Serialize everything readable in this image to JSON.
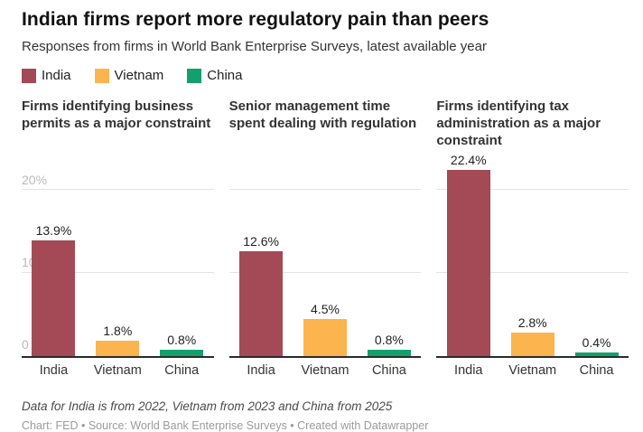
{
  "title": "Indian firms report more regulatory pain than peers",
  "subtitle": "Responses from firms in World Bank Enterprise Surveys, latest available year",
  "legend": {
    "items": [
      {
        "label": "India",
        "color": "#a34a56"
      },
      {
        "label": "Vietnam",
        "color": "#fcb44f"
      },
      {
        "label": "China",
        "color": "#12a16d"
      }
    ]
  },
  "axis": {
    "tick_20": "20%",
    "tick_10": "10",
    "tick_0": "0"
  },
  "chart_data": [
    {
      "type": "bar",
      "title": "Firms identifying business permits as a major constraint",
      "categories": [
        "India",
        "Vietnam",
        "China"
      ],
      "values": [
        13.9,
        1.8,
        0.8
      ],
      "value_labels": [
        "13.9%",
        "1.8%",
        "0.8%"
      ],
      "ylabel": "",
      "xlabel": "",
      "ylim": [
        0,
        20
      ],
      "yticks": [
        0,
        10,
        20
      ],
      "unit": "%",
      "grid": true,
      "legend_position": "top"
    },
    {
      "type": "bar",
      "title": "Senior management time spent dealing with regulation",
      "categories": [
        "India",
        "Vietnam",
        "China"
      ],
      "values": [
        12.6,
        4.5,
        0.8
      ],
      "value_labels": [
        "12.6%",
        "4.5%",
        "0.8%"
      ],
      "ylabel": "",
      "xlabel": "",
      "ylim": [
        0,
        20
      ],
      "yticks": [
        0,
        10,
        20
      ],
      "unit": "%",
      "grid": true,
      "legend_position": "top"
    },
    {
      "type": "bar",
      "title": "Firms identifying tax administration as a major constraint",
      "categories": [
        "India",
        "Vietnam",
        "China"
      ],
      "values": [
        22.4,
        2.8,
        0.4
      ],
      "value_labels": [
        "22.4%",
        "2.8%",
        "0.4%"
      ],
      "ylabel": "",
      "xlabel": "",
      "ylim": [
        0,
        20
      ],
      "yticks": [
        0,
        10,
        20
      ],
      "unit": "%",
      "grid": true,
      "legend_position": "top"
    }
  ],
  "footer": {
    "note": "Data for India is from 2022, Vietnam from 2023 and China from 2025",
    "credit": "Chart: FED • Source: World Bank Enterprise Surveys • Created with Datawrapper"
  }
}
